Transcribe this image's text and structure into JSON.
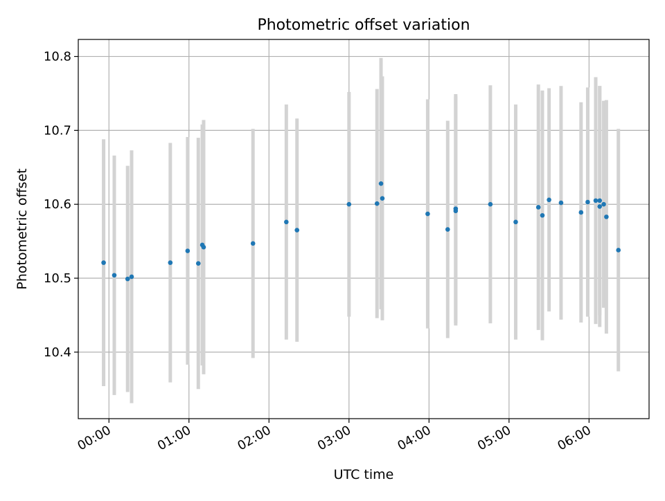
{
  "chart_data": {
    "type": "scatter",
    "title": "Photometric offset variation",
    "xlabel": "UTC time",
    "ylabel": "Photometric offset",
    "x_unit": "UTC time (HH:MM)",
    "xlim": [
      "-00:23",
      "06:45"
    ],
    "ylim": [
      10.31,
      10.823
    ],
    "x_ticks": [
      "00:00",
      "01:00",
      "02:00",
      "03:00",
      "04:00",
      "05:00",
      "06:00"
    ],
    "y_ticks": [
      10.4,
      10.5,
      10.6,
      10.7,
      10.8
    ],
    "y_tick_labels": [
      "10.4",
      "10.5",
      "10.6",
      "10.7",
      "10.8"
    ],
    "grid": true,
    "legend": "none",
    "colors": {
      "point": "#1f77b4",
      "errorbar": "#d3d3d3",
      "grid": "#b0b0b0"
    },
    "points": [
      {
        "x": "23:56",
        "y": 10.521,
        "err": 0.167
      },
      {
        "x": "00:04",
        "y": 10.504,
        "err": 0.162
      },
      {
        "x": "00:14",
        "y": 10.499,
        "err": 0.153
      },
      {
        "x": "00:17",
        "y": 10.502,
        "err": 0.171
      },
      {
        "x": "00:46",
        "y": 10.521,
        "err": 0.162
      },
      {
        "x": "00:59",
        "y": 10.537,
        "err": 0.154
      },
      {
        "x": "01:07",
        "y": 10.52,
        "err": 0.17
      },
      {
        "x": "01:10",
        "y": 10.545,
        "err": 0.163
      },
      {
        "x": "01:11",
        "y": 10.542,
        "err": 0.172
      },
      {
        "x": "01:48",
        "y": 10.547,
        "err": 0.155
      },
      {
        "x": "02:13",
        "y": 10.576,
        "err": 0.159
      },
      {
        "x": "02:21",
        "y": 10.565,
        "err": 0.151
      },
      {
        "x": "03:00",
        "y": 10.6,
        "err": 0.152
      },
      {
        "x": "03:21",
        "y": 10.601,
        "err": 0.155
      },
      {
        "x": "03:24",
        "y": 10.628,
        "err": 0.17
      },
      {
        "x": "03:25",
        "y": 10.608,
        "err": 0.165
      },
      {
        "x": "03:59",
        "y": 10.587,
        "err": 0.155
      },
      {
        "x": "04:14",
        "y": 10.566,
        "err": 0.147
      },
      {
        "x": "04:20",
        "y": 10.594,
        "err": 0.155
      },
      {
        "x": "04:20",
        "y": 10.591,
        "err": 0.155
      },
      {
        "x": "04:46",
        "y": 10.6,
        "err": 0.161
      },
      {
        "x": "05:05",
        "y": 10.576,
        "err": 0.159
      },
      {
        "x": "05:22",
        "y": 10.596,
        "err": 0.166
      },
      {
        "x": "05:25",
        "y": 10.585,
        "err": 0.169
      },
      {
        "x": "05:30",
        "y": 10.606,
        "err": 0.151
      },
      {
        "x": "05:39",
        "y": 10.602,
        "err": 0.158
      },
      {
        "x": "05:54",
        "y": 10.589,
        "err": 0.149
      },
      {
        "x": "05:59",
        "y": 10.603,
        "err": 0.155
      },
      {
        "x": "06:05",
        "y": 10.605,
        "err": 0.167
      },
      {
        "x": "06:08",
        "y": 10.597,
        "err": 0.163
      },
      {
        "x": "06:08",
        "y": 10.605,
        "err": 0.155
      },
      {
        "x": "06:11",
        "y": 10.6,
        "err": 0.14
      },
      {
        "x": "06:13",
        "y": 10.583,
        "err": 0.158
      },
      {
        "x": "06:22",
        "y": 10.538,
        "err": 0.164
      }
    ]
  }
}
